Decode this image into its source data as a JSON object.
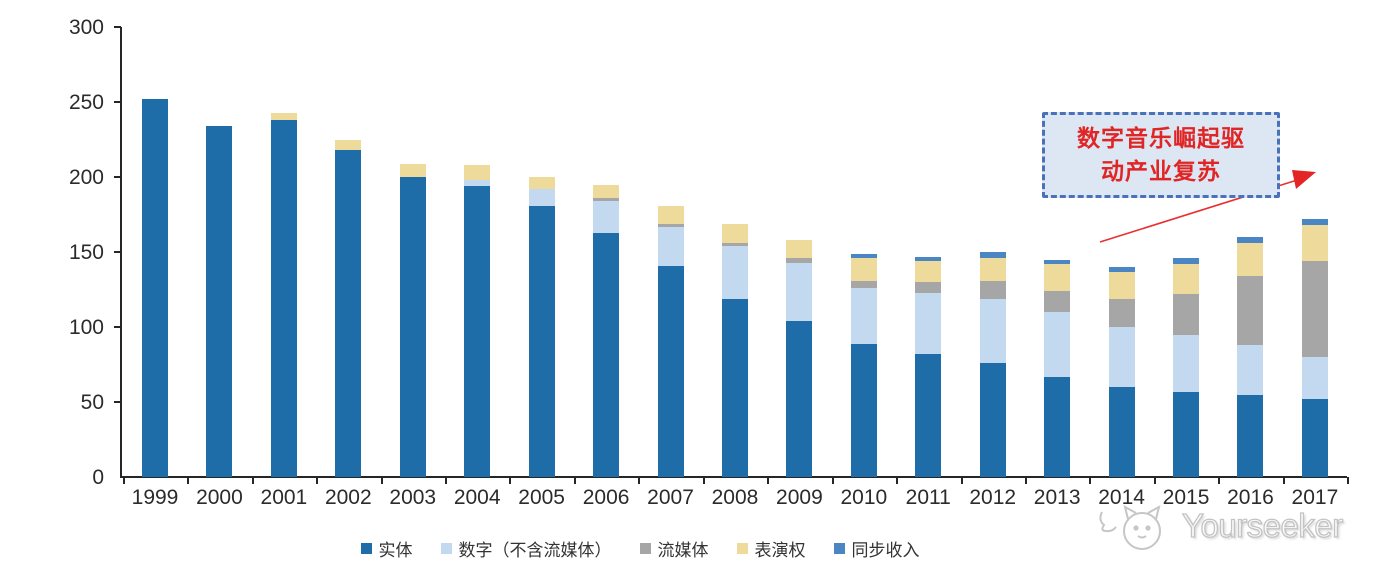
{
  "chart_data": {
    "type": "bar",
    "stacked": true,
    "grid": false,
    "legend_position": "bottom",
    "categories": [
      "1999",
      "2000",
      "2001",
      "2002",
      "2003",
      "2004",
      "2005",
      "2006",
      "2007",
      "2008",
      "2009",
      "2010",
      "2011",
      "2012",
      "2013",
      "2014",
      "2015",
      "2016",
      "2017"
    ],
    "series": [
      {
        "name": "实体",
        "color": "#1f6da8",
        "values": [
          252,
          234,
          238,
          218,
          200,
          194,
          181,
          163,
          141,
          119,
          104,
          89,
          82,
          76,
          67,
          60,
          57,
          55,
          52
        ]
      },
      {
        "name": "数字（不含流媒体）",
        "color": "#c3d9ef",
        "values": [
          0,
          0,
          0,
          0,
          0,
          4,
          11,
          21,
          26,
          35,
          39,
          37,
          41,
          43,
          43,
          40,
          38,
          33,
          28
        ]
      },
      {
        "name": "流媒体",
        "color": "#a6a6a6",
        "values": [
          0,
          0,
          0,
          0,
          0,
          0,
          0,
          2,
          2,
          2,
          3,
          5,
          7,
          12,
          14,
          19,
          27,
          46,
          64
        ]
      },
      {
        "name": "表演权",
        "color": "#eeda9b",
        "values": [
          0,
          0,
          5,
          7,
          9,
          10,
          8,
          9,
          12,
          13,
          12,
          15,
          14,
          15,
          18,
          18,
          20,
          22,
          24
        ]
      },
      {
        "name": "同步收入",
        "color": "#4a86c4",
        "values": [
          0,
          0,
          0,
          0,
          0,
          0,
          0,
          0,
          0,
          0,
          0,
          3,
          3,
          4,
          3,
          3,
          4,
          4,
          4
        ]
      }
    ],
    "ylim": [
      0,
      300
    ],
    "yticks": [
      0,
      50,
      100,
      150,
      200,
      250,
      300
    ],
    "title": "",
    "xlabel": "",
    "ylabel": ""
  },
  "annotation": {
    "line1": "数字音乐崛起驱",
    "line2": "动产业复苏"
  },
  "watermark": {
    "text": "Yourseeker"
  },
  "colors": {
    "axis": "#262626",
    "annotation_border": "#4a72ba",
    "annotation_fill": "#dce7f3",
    "annotation_text": "#e02525",
    "arrow": "#e83030"
  }
}
